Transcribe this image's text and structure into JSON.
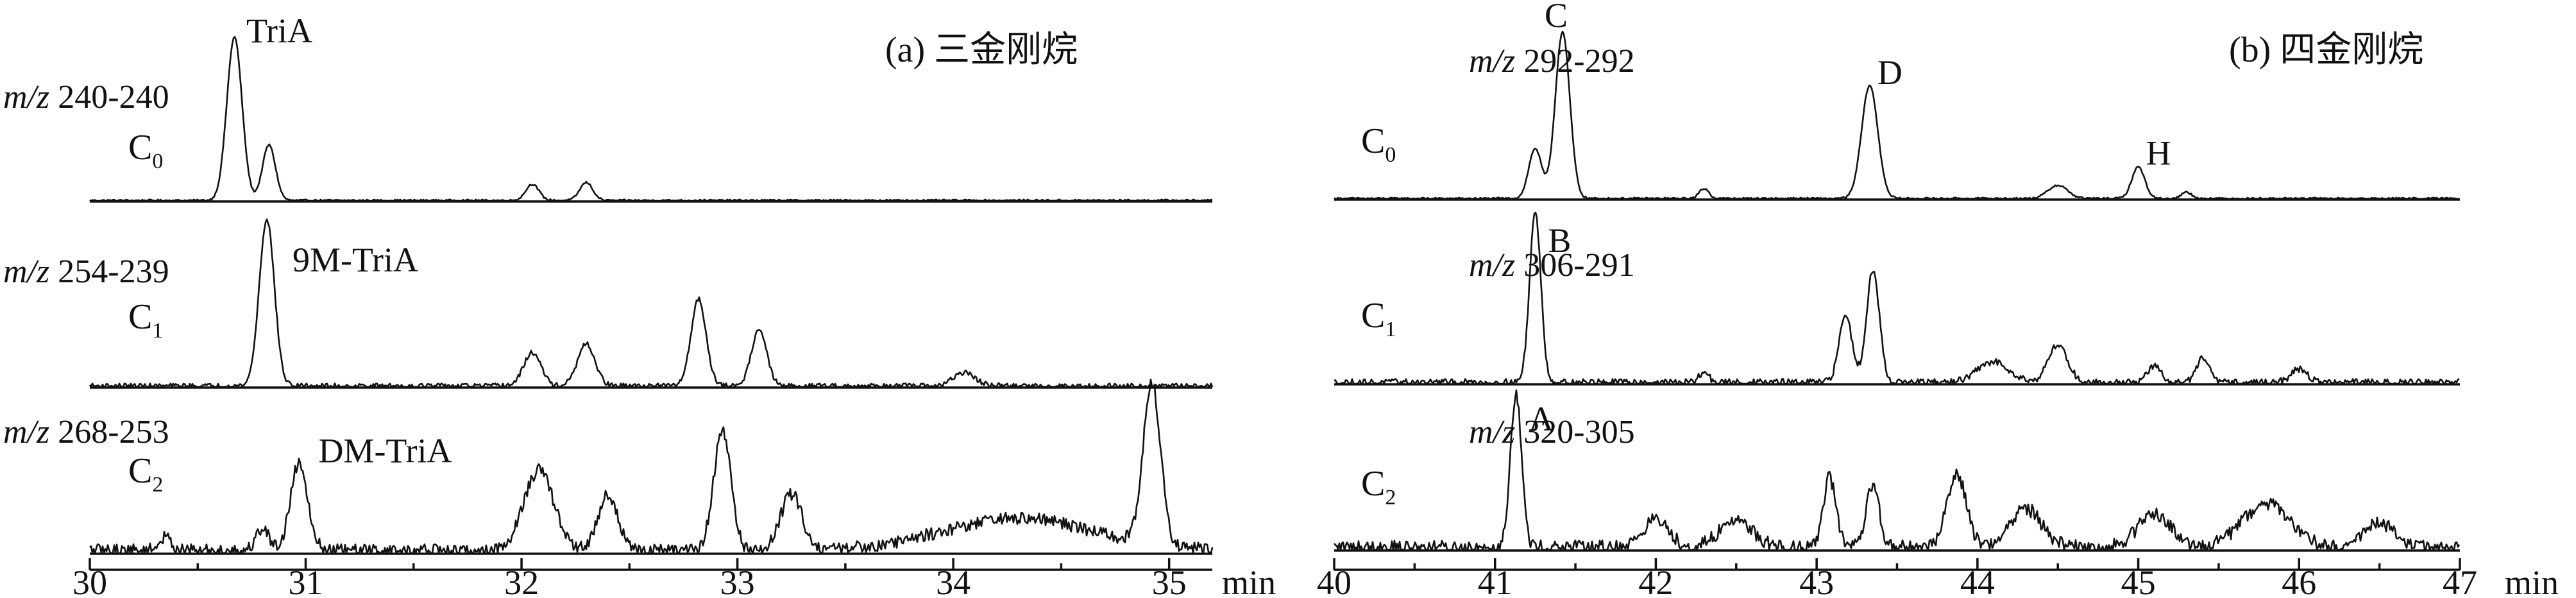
{
  "chart_data": [
    {
      "type": "line",
      "panel": "a",
      "title": "(a) 三金刚烷",
      "xlabel": "min",
      "xlim": [
        30,
        35.2
      ],
      "x_ticks": [
        30,
        31,
        32,
        33,
        34,
        35
      ],
      "traces": [
        {
          "ion_prefix": "m/z",
          "ion_values": "240-240",
          "group": "C",
          "group_sub": "0",
          "noise": 0.012,
          "peaks": [
            {
              "rt": 30.67,
              "height": 1.0,
              "width": 0.035,
              "label": "TriA"
            },
            {
              "rt": 30.83,
              "height": 0.34,
              "width": 0.03,
              "label": ""
            },
            {
              "rt": 32.05,
              "height": 0.1,
              "width": 0.03,
              "label": ""
            },
            {
              "rt": 32.3,
              "height": 0.11,
              "width": 0.03,
              "label": ""
            }
          ]
        },
        {
          "ion_prefix": "m/z",
          "ion_values": "254-239",
          "group": "C",
          "group_sub": "1",
          "noise": 0.03,
          "peaks": [
            {
              "rt": 30.82,
              "height": 1.0,
              "width": 0.035,
              "label": "9M-TriA"
            },
            {
              "rt": 32.05,
              "height": 0.2,
              "width": 0.04,
              "label": ""
            },
            {
              "rt": 32.3,
              "height": 0.25,
              "width": 0.04,
              "label": ""
            },
            {
              "rt": 32.82,
              "height": 0.52,
              "width": 0.035,
              "label": ""
            },
            {
              "rt": 33.1,
              "height": 0.34,
              "width": 0.035,
              "label": ""
            },
            {
              "rt": 34.05,
              "height": 0.08,
              "width": 0.05,
              "label": ""
            }
          ]
        },
        {
          "ion_prefix": "m/z",
          "ion_values": "268-253",
          "group": "C",
          "group_sub": "2",
          "noise": 0.08,
          "peaks": [
            {
              "rt": 30.35,
              "height": 0.08,
              "width": 0.03,
              "label": ""
            },
            {
              "rt": 30.8,
              "height": 0.14,
              "width": 0.03,
              "label": ""
            },
            {
              "rt": 30.97,
              "height": 0.55,
              "width": 0.04,
              "label": "DM-TriA"
            },
            {
              "rt": 32.08,
              "height": 0.5,
              "width": 0.07,
              "label": ""
            },
            {
              "rt": 32.4,
              "height": 0.35,
              "width": 0.045,
              "label": ""
            },
            {
              "rt": 32.93,
              "height": 0.75,
              "width": 0.04,
              "label": ""
            },
            {
              "rt": 33.25,
              "height": 0.35,
              "width": 0.05,
              "label": ""
            },
            {
              "rt": 34.3,
              "height": 0.2,
              "width": 0.35,
              "label": ""
            },
            {
              "rt": 34.92,
              "height": 1.0,
              "width": 0.04,
              "label": ""
            }
          ]
        }
      ]
    },
    {
      "type": "line",
      "panel": "b",
      "title": "(b) 四金刚烷",
      "xlabel": "min",
      "xlim": [
        40,
        47
      ],
      "x_ticks": [
        40,
        41,
        42,
        43,
        44,
        45,
        46,
        47
      ],
      "traces": [
        {
          "ion_prefix": "m/z",
          "ion_values": "292-292",
          "group": "C",
          "group_sub": "0",
          "noise": 0.012,
          "peaks": [
            {
              "rt": 41.25,
              "height": 0.3,
              "width": 0.04,
              "label": ""
            },
            {
              "rt": 41.42,
              "height": 1.0,
              "width": 0.045,
              "label": "C"
            },
            {
              "rt": 42.3,
              "height": 0.06,
              "width": 0.03,
              "label": ""
            },
            {
              "rt": 43.33,
              "height": 0.68,
              "width": 0.05,
              "label": "D"
            },
            {
              "rt": 44.5,
              "height": 0.08,
              "width": 0.06,
              "label": ""
            },
            {
              "rt": 45.0,
              "height": 0.19,
              "width": 0.04,
              "label": "H"
            },
            {
              "rt": 45.3,
              "height": 0.04,
              "width": 0.03,
              "label": ""
            }
          ]
        },
        {
          "ion_prefix": "m/z",
          "ion_values": "306-291",
          "group": "C",
          "group_sub": "1",
          "noise": 0.04,
          "peaks": [
            {
              "rt": 41.25,
              "height": 1.0,
              "width": 0.035,
              "label": "B"
            },
            {
              "rt": 42.3,
              "height": 0.06,
              "width": 0.03,
              "label": ""
            },
            {
              "rt": 43.18,
              "height": 0.4,
              "width": 0.04,
              "label": ""
            },
            {
              "rt": 43.35,
              "height": 0.66,
              "width": 0.04,
              "label": ""
            },
            {
              "rt": 44.1,
              "height": 0.12,
              "width": 0.1,
              "label": ""
            },
            {
              "rt": 44.5,
              "height": 0.22,
              "width": 0.06,
              "label": ""
            },
            {
              "rt": 45.1,
              "height": 0.1,
              "width": 0.04,
              "label": ""
            },
            {
              "rt": 45.4,
              "height": 0.14,
              "width": 0.04,
              "label": ""
            },
            {
              "rt": 46.0,
              "height": 0.08,
              "width": 0.05,
              "label": ""
            }
          ]
        },
        {
          "ion_prefix": "m/z",
          "ion_values": "320-305",
          "group": "C",
          "group_sub": "2",
          "noise": 0.09,
          "peaks": [
            {
              "rt": 41.13,
              "height": 1.0,
              "width": 0.035,
              "label": "A"
            },
            {
              "rt": 42.0,
              "height": 0.18,
              "width": 0.08,
              "label": ""
            },
            {
              "rt": 42.5,
              "height": 0.18,
              "width": 0.1,
              "label": ""
            },
            {
              "rt": 43.08,
              "height": 0.45,
              "width": 0.04,
              "label": ""
            },
            {
              "rt": 43.35,
              "height": 0.4,
              "width": 0.04,
              "label": ""
            },
            {
              "rt": 43.87,
              "height": 0.48,
              "width": 0.06,
              "label": ""
            },
            {
              "rt": 44.3,
              "height": 0.25,
              "width": 0.1,
              "label": ""
            },
            {
              "rt": 45.1,
              "height": 0.22,
              "width": 0.1,
              "label": ""
            },
            {
              "rt": 45.8,
              "height": 0.28,
              "width": 0.15,
              "label": ""
            },
            {
              "rt": 46.5,
              "height": 0.15,
              "width": 0.1,
              "label": ""
            }
          ]
        }
      ]
    }
  ]
}
